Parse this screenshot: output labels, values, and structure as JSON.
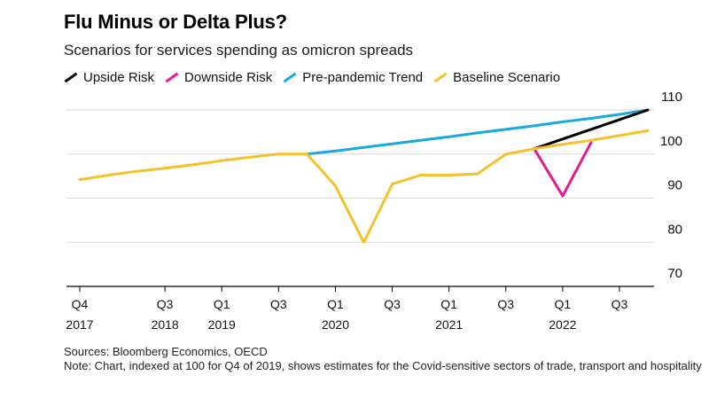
{
  "chart_data": {
    "type": "line",
    "title": "Flu Minus or Delta Plus?",
    "subtitle": "Scenarios for services spending as omicron spreads",
    "x": [
      "Q4 2017",
      "Q1 2018",
      "Q2 2018",
      "Q3 2018",
      "Q4 2018",
      "Q1 2019",
      "Q2 2019",
      "Q3 2019",
      "Q4 2019",
      "Q1 2020",
      "Q2 2020",
      "Q3 2020",
      "Q4 2020",
      "Q1 2021",
      "Q2 2021",
      "Q3 2021",
      "Q4 2021",
      "Q1 2022",
      "Q2 2022",
      "Q3 2022",
      "Q4 2022"
    ],
    "series": [
      {
        "name": "Pre-pandemic Trend",
        "color": "#1ba8e0",
        "values": [
          null,
          null,
          null,
          null,
          null,
          null,
          null,
          null,
          100,
          100.7,
          101.5,
          102.3,
          103.1,
          103.9,
          104.8,
          105.6,
          106.4,
          107.3,
          108.1,
          109.0,
          110.0
        ]
      },
      {
        "name": "Upside Risk",
        "color": "#000000",
        "values": [
          null,
          null,
          null,
          null,
          null,
          null,
          null,
          null,
          null,
          null,
          null,
          null,
          null,
          null,
          null,
          null,
          101.2,
          103.4,
          105.6,
          107.8,
          110.0
        ]
      },
      {
        "name": "Downside Risk",
        "color": "#e8198b",
        "values": [
          null,
          null,
          null,
          null,
          null,
          null,
          null,
          null,
          null,
          null,
          null,
          null,
          null,
          null,
          null,
          null,
          101.2,
          90.5,
          102.6,
          null,
          null
        ]
      },
      {
        "name": "Baseline Scenario",
        "color": "#f5c12a",
        "values": [
          94.2,
          95.2,
          96.1,
          96.8,
          97.6,
          98.5,
          99.3,
          100.0,
          100.0,
          92.8,
          80.0,
          93.2,
          95.2,
          95.2,
          95.5,
          100.0,
          101.2,
          102.2,
          103.1,
          104.2,
          105.3
        ]
      }
    ],
    "legend": [
      "Upside Risk",
      "Downside Risk",
      "Pre-pandemic Trend",
      "Baseline Scenario"
    ],
    "ylim": [
      70,
      110
    ],
    "yticks": [
      70,
      80,
      90,
      100,
      110
    ],
    "grid": true,
    "y_axis_position": "right",
    "xtick_labels": [
      {
        "index": 0,
        "line1": "Q4",
        "line2": "2017"
      },
      {
        "index": 3,
        "line1": "Q3",
        "line2": "2018"
      },
      {
        "index": 5,
        "line1": "Q1",
        "line2": "2019"
      },
      {
        "index": 7,
        "line1": "Q3",
        "line2": ""
      },
      {
        "index": 9,
        "line1": "Q1",
        "line2": "2020"
      },
      {
        "index": 11,
        "line1": "Q3",
        "line2": ""
      },
      {
        "index": 13,
        "line1": "Q1",
        "line2": "2021"
      },
      {
        "index": 15,
        "line1": "Q3",
        "line2": ""
      },
      {
        "index": 17,
        "line1": "Q1",
        "line2": "2022"
      },
      {
        "index": 19,
        "line1": "Q3",
        "line2": ""
      }
    ]
  },
  "footer": {
    "sources": "Sources: Bloomberg Economics, OECD",
    "note": "Note: Chart, indexed at 100 for Q4 of 2019, shows estimates for the Covid-sensitive sectors of trade, transport and hospitality"
  }
}
